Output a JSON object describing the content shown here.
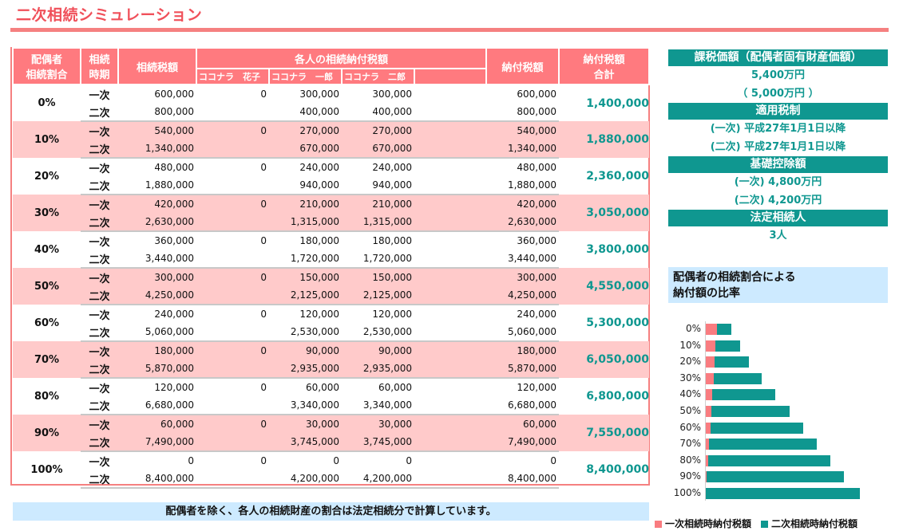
{
  "page": {
    "title": "二次相続シミュレーション"
  },
  "table": {
    "headers": {
      "ratio": "配偶者\n相続割合",
      "ratio_l1": "配偶者",
      "ratio_l2": "相続割合",
      "period_l1": "相続",
      "period_l2": "時期",
      "tax": "相続税額",
      "each_group": "各人の相続納付税額",
      "heirs": [
        "ココナラ　花子",
        "ココナラ　一郎",
        "ココナラ　二郎",
        ""
      ],
      "payable": "納付税額",
      "total_l1": "納付税額",
      "total_l2": "合計"
    },
    "period_labels": [
      "一次",
      "二次"
    ],
    "rows": [
      {
        "ratio": "0%",
        "first": {
          "tax": "600,000",
          "h1": "0",
          "h2": "300,000",
          "h3": "300,000",
          "h4": "",
          "pay": "600,000"
        },
        "second": {
          "tax": "800,000",
          "h1": "",
          "h2": "400,000",
          "h3": "400,000",
          "h4": "",
          "pay": "800,000"
        },
        "total": "1,400,000"
      },
      {
        "ratio": "10%",
        "first": {
          "tax": "540,000",
          "h1": "0",
          "h2": "270,000",
          "h3": "270,000",
          "h4": "",
          "pay": "540,000"
        },
        "second": {
          "tax": "1,340,000",
          "h1": "",
          "h2": "670,000",
          "h3": "670,000",
          "h4": "",
          "pay": "1,340,000"
        },
        "total": "1,880,000"
      },
      {
        "ratio": "20%",
        "first": {
          "tax": "480,000",
          "h1": "0",
          "h2": "240,000",
          "h3": "240,000",
          "h4": "",
          "pay": "480,000"
        },
        "second": {
          "tax": "1,880,000",
          "h1": "",
          "h2": "940,000",
          "h3": "940,000",
          "h4": "",
          "pay": "1,880,000"
        },
        "total": "2,360,000"
      },
      {
        "ratio": "30%",
        "first": {
          "tax": "420,000",
          "h1": "0",
          "h2": "210,000",
          "h3": "210,000",
          "h4": "",
          "pay": "420,000"
        },
        "second": {
          "tax": "2,630,000",
          "h1": "",
          "h2": "1,315,000",
          "h3": "1,315,000",
          "h4": "",
          "pay": "2,630,000"
        },
        "total": "3,050,000"
      },
      {
        "ratio": "40%",
        "first": {
          "tax": "360,000",
          "h1": "0",
          "h2": "180,000",
          "h3": "180,000",
          "h4": "",
          "pay": "360,000"
        },
        "second": {
          "tax": "3,440,000",
          "h1": "",
          "h2": "1,720,000",
          "h3": "1,720,000",
          "h4": "",
          "pay": "3,440,000"
        },
        "total": "3,800,000"
      },
      {
        "ratio": "50%",
        "first": {
          "tax": "300,000",
          "h1": "0",
          "h2": "150,000",
          "h3": "150,000",
          "h4": "",
          "pay": "300,000"
        },
        "second": {
          "tax": "4,250,000",
          "h1": "",
          "h2": "2,125,000",
          "h3": "2,125,000",
          "h4": "",
          "pay": "4,250,000"
        },
        "total": "4,550,000"
      },
      {
        "ratio": "60%",
        "first": {
          "tax": "240,000",
          "h1": "0",
          "h2": "120,000",
          "h3": "120,000",
          "h4": "",
          "pay": "240,000"
        },
        "second": {
          "tax": "5,060,000",
          "h1": "",
          "h2": "2,530,000",
          "h3": "2,530,000",
          "h4": "",
          "pay": "5,060,000"
        },
        "total": "5,300,000"
      },
      {
        "ratio": "70%",
        "first": {
          "tax": "180,000",
          "h1": "0",
          "h2": "90,000",
          "h3": "90,000",
          "h4": "",
          "pay": "180,000"
        },
        "second": {
          "tax": "5,870,000",
          "h1": "",
          "h2": "2,935,000",
          "h3": "2,935,000",
          "h4": "",
          "pay": "5,870,000"
        },
        "total": "6,050,000"
      },
      {
        "ratio": "80%",
        "first": {
          "tax": "120,000",
          "h1": "0",
          "h2": "60,000",
          "h3": "60,000",
          "h4": "",
          "pay": "120,000"
        },
        "second": {
          "tax": "6,680,000",
          "h1": "",
          "h2": "3,340,000",
          "h3": "3,340,000",
          "h4": "",
          "pay": "6,680,000"
        },
        "total": "6,800,000"
      },
      {
        "ratio": "90%",
        "first": {
          "tax": "60,000",
          "h1": "0",
          "h2": "30,000",
          "h3": "30,000",
          "h4": "",
          "pay": "60,000"
        },
        "second": {
          "tax": "7,490,000",
          "h1": "",
          "h2": "3,745,000",
          "h3": "3,745,000",
          "h4": "",
          "pay": "7,490,000"
        },
        "total": "7,550,000"
      },
      {
        "ratio": "100%",
        "first": {
          "tax": "0",
          "h1": "0",
          "h2": "0",
          "h3": "0",
          "h4": "",
          "pay": "0"
        },
        "second": {
          "tax": "8,400,000",
          "h1": "",
          "h2": "4,200,000",
          "h3": "4,200,000",
          "h4": "",
          "pay": "8,400,000"
        },
        "total": "8,400,000"
      }
    ]
  },
  "sidebar": {
    "taxable_value_head": "課税価額（配偶者固有財産価額）",
    "taxable_value": "5,400万円",
    "spouse_own_value": "（ 5,000万円 ）",
    "tax_system_head": "適用税制",
    "tax_system_first": "(一次) 平成27年1月1日以降",
    "tax_system_second": "(二次) 平成27年1月1日以降",
    "basic_deduction_head": "基礎控除額",
    "basic_deduction_first": "(一次) 4,800万円",
    "basic_deduction_second": "(二次) 4,200万円",
    "legal_heirs_head": "法定相続人",
    "legal_heirs": "3人"
  },
  "chart_title_l1": "配偶者の相続割合による",
  "chart_title_l2": "納付額の比率",
  "legend": {
    "first": "一次相続時納付税額",
    "second": "二次相続時納付税額",
    "first_color": "#f97c80",
    "second_color": "#0f9790"
  },
  "note": "配偶者を除く、各人の相続財産の割合は法定相続分で計算しています。",
  "colors": {
    "header_pink": "#ff7a7f",
    "row_pink": "#ffcaca",
    "teal": "#0f9790",
    "title_red": "#f0505a",
    "note_blue": "#cdeaff"
  },
  "chart_data": {
    "type": "bar",
    "orientation": "horizontal",
    "stacked": true,
    "title": "配偶者の相続割合による納付額の比率",
    "categories": [
      "0%",
      "10%",
      "20%",
      "30%",
      "40%",
      "50%",
      "60%",
      "70%",
      "80%",
      "90%",
      "100%"
    ],
    "series": [
      {
        "name": "一次相続時納付税額",
        "color": "#f97c80",
        "values": [
          600000,
          540000,
          480000,
          420000,
          360000,
          300000,
          240000,
          180000,
          120000,
          60000,
          0
        ]
      },
      {
        "name": "二次相続時納付税額",
        "color": "#0f9790",
        "values": [
          800000,
          1340000,
          1880000,
          2630000,
          3440000,
          4250000,
          5060000,
          5870000,
          6680000,
          7490000,
          8400000
        ]
      }
    ],
    "xlabel": "",
    "ylabel": "",
    "xlim": [
      0,
      8400000
    ],
    "grid": false,
    "legend_position": "bottom"
  }
}
